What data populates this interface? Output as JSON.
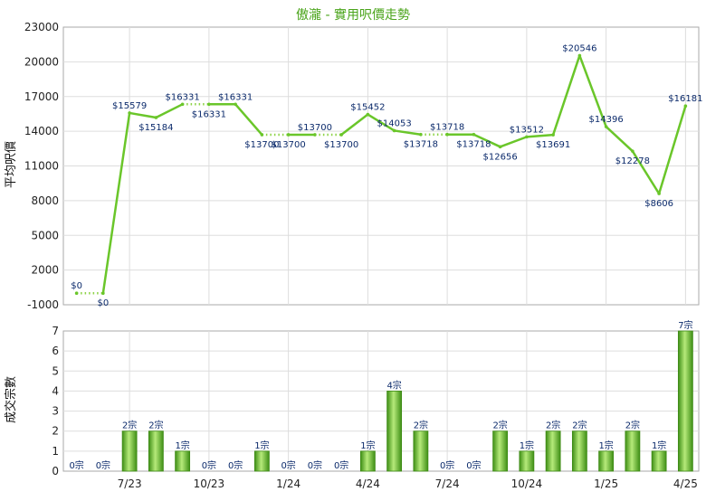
{
  "chart_data": [
    {
      "type": "line",
      "title": "傲瀧 - 實用呎價走勢",
      "ylabel": "平均呎價",
      "ylim": [
        -1000,
        23000
      ],
      "yticks": [
        -1000,
        2000,
        5000,
        8000,
        11000,
        14000,
        17000,
        20000,
        23000
      ],
      "grid": true,
      "series": [
        {
          "values": [
            0,
            0,
            15579,
            15184,
            16331,
            16331,
            16331,
            13700,
            13700,
            13700,
            13700,
            15452,
            14053,
            13718,
            13718,
            13718,
            12656,
            13512,
            13691,
            20546,
            14396,
            12278,
            8606,
            16181
          ],
          "labels": [
            "$0",
            "$0",
            "$15579",
            "$15184",
            "$16331",
            "$16331",
            "$16331",
            "$13700",
            "$13700",
            "$13700",
            "$13700",
            "$15452",
            "$14053",
            "$13718",
            "$13718",
            "$13718",
            "$12656",
            "$13512",
            "$13691",
            "$20546",
            "$14396",
            "$12278",
            "$8606",
            "$16181"
          ],
          "estimated": [
            false,
            true,
            false,
            false,
            false,
            true,
            false,
            false,
            true,
            false,
            true,
            false,
            false,
            false,
            true,
            false,
            false,
            false,
            false,
            false,
            false,
            false,
            false,
            false
          ]
        }
      ],
      "line_color": "#6ac62a",
      "estimated_color": "#8fd34a"
    },
    {
      "type": "bar",
      "ylabel": "成交宗數",
      "ylim": [
        0,
        7
      ],
      "yticks": [
        0,
        1,
        2,
        3,
        4,
        5,
        6,
        7
      ],
      "grid": true,
      "values": [
        0,
        0,
        2,
        2,
        1,
        0,
        0,
        1,
        0,
        0,
        0,
        1,
        4,
        2,
        0,
        0,
        2,
        1,
        2,
        2,
        1,
        2,
        1,
        7
      ],
      "labels": [
        "0宗",
        "0宗",
        "2宗",
        "2宗",
        "1宗",
        "0宗",
        "0宗",
        "1宗",
        "0宗",
        "0宗",
        "0宗",
        "1宗",
        "4宗",
        "2宗",
        "0宗",
        "0宗",
        "2宗",
        "1宗",
        "2宗",
        "2宗",
        "1宗",
        "2宗",
        "1宗",
        "7宗"
      ],
      "x_ticks": [
        {
          "index": 2,
          "label": "7/23"
        },
        {
          "index": 5,
          "label": "10/23"
        },
        {
          "index": 8,
          "label": "1/24"
        },
        {
          "index": 11,
          "label": "4/24"
        },
        {
          "index": 14,
          "label": "7/24"
        },
        {
          "index": 17,
          "label": "10/24"
        },
        {
          "index": 20,
          "label": "1/25"
        },
        {
          "index": 23,
          "label": "4/25"
        }
      ],
      "bar_color": "#5cb82a"
    }
  ]
}
